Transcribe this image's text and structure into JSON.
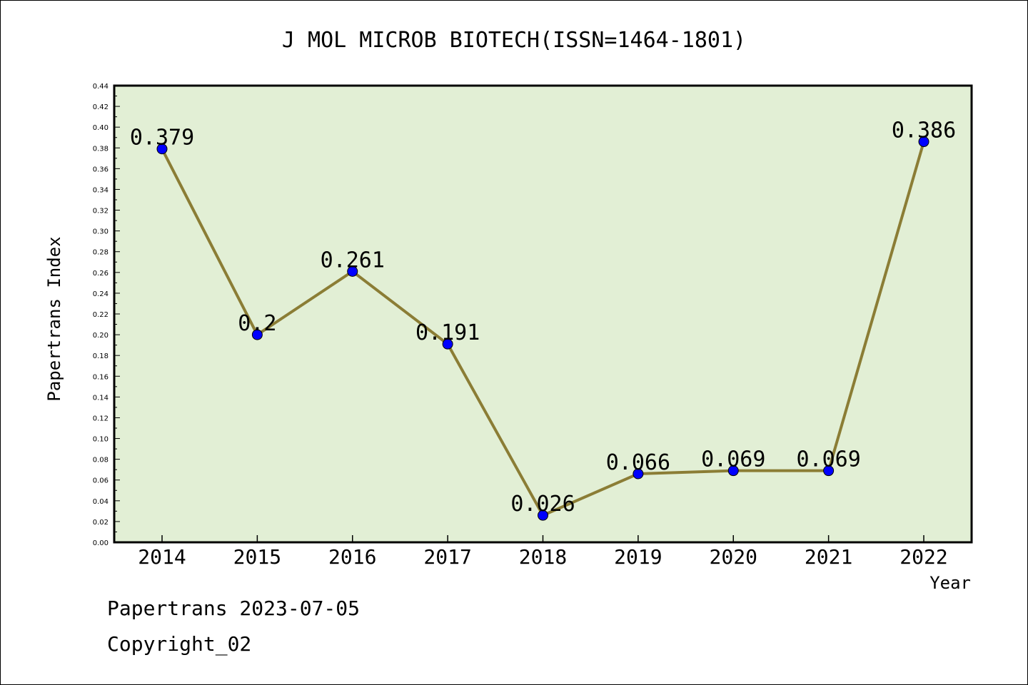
{
  "chart_data": {
    "type": "line",
    "title": "J MOL MICROB BIOTECH(ISSN=1464-1801)",
    "xlabel": "Year",
    "ylabel": "Papertrans Index",
    "categories": [
      "2014",
      "2015",
      "2016",
      "2017",
      "2018",
      "2019",
      "2020",
      "2021",
      "2022"
    ],
    "series": [
      {
        "values": [
          0.379,
          0.2,
          0.261,
          0.191,
          0.026,
          0.066,
          0.069,
          0.069,
          0.386
        ],
        "labels": [
          "0.379",
          "0.2",
          "0.261",
          "0.191",
          "0.026",
          "0.066",
          "0.069",
          "0.069",
          "0.386"
        ]
      }
    ],
    "ylim": [
      0,
      0.44
    ],
    "yticks": [
      "0.00",
      "0.02",
      "0.04",
      "0.06",
      "0.08",
      "0.10",
      "0.12",
      "0.14",
      "0.16",
      "0.18",
      "0.20",
      "0.22",
      "0.24",
      "0.26",
      "0.28",
      "0.30",
      "0.32",
      "0.34",
      "0.36",
      "0.38",
      "0.40",
      "0.42",
      "0.44"
    ],
    "grid": false,
    "colors": {
      "plot_bg": "#e2efd5",
      "line": "#8b7d35",
      "marker": "#0000ff"
    }
  },
  "footer": {
    "line1": "Papertrans 2023-07-05",
    "line2": "Copyright_02"
  }
}
